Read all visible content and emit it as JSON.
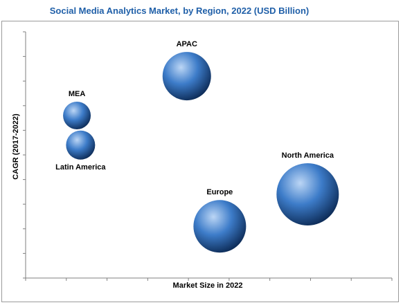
{
  "chart_data": {
    "type": "scatter",
    "title": "Social Media Analytics Market, by Region, 2022 (USD Billion)",
    "xlabel": "Market Size in 2022",
    "ylabel": "CAGR (2017-2022)",
    "xlim": [
      0,
      10
    ],
    "ylim": [
      0,
      10
    ],
    "grid": false,
    "legend": "none",
    "colors": {
      "bubble_light": "#bcd6f5",
      "bubble_mid": "#3d7cc9",
      "bubble_dark": "#0c2a55"
    },
    "points": [
      {
        "label": "APAC",
        "x": 4.4,
        "y": 8.2,
        "size": 35,
        "label_pos": "above"
      },
      {
        "label": "MEA",
        "x": 1.4,
        "y": 6.6,
        "size": 20,
        "label_pos": "above"
      },
      {
        "label": "Latin America",
        "x": 1.5,
        "y": 5.4,
        "size": 21,
        "label_pos": "below"
      },
      {
        "label": "Europe",
        "x": 5.3,
        "y": 2.1,
        "size": 38,
        "label_pos": "above"
      },
      {
        "label": "North America",
        "x": 7.7,
        "y": 3.4,
        "size": 45,
        "label_pos": "above"
      }
    ]
  }
}
